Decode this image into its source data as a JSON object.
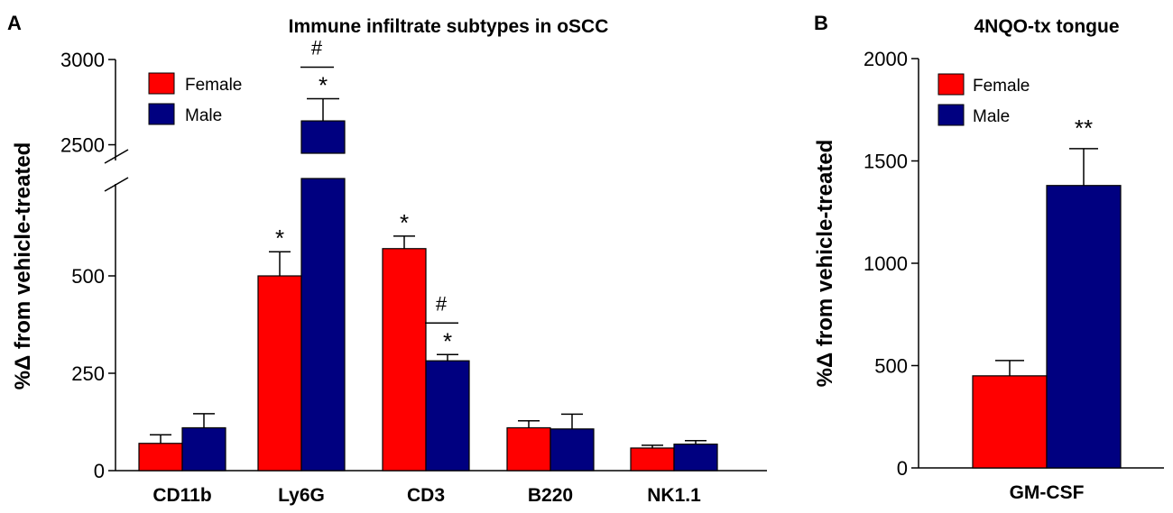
{
  "chart_data": [
    {
      "panel": "A",
      "type": "bar",
      "title": "Immune infiltrate subtypes in oSCC",
      "ylabel": "%Δ from vehicle-treated",
      "xlabel": "",
      "y_ticks_lower": [
        0,
        250,
        500
      ],
      "y_ticks_upper": [
        2500,
        3000
      ],
      "axis_break": {
        "lower_range": [
          0,
          750
        ],
        "upper_range": [
          2450,
          3000
        ]
      },
      "categories": [
        "CD11b",
        "Ly6G",
        "CD3",
        "B220",
        "NK1.1"
      ],
      "series": [
        {
          "name": "Female",
          "color": "#ff0000",
          "values": [
            70,
            500,
            570,
            110,
            58
          ],
          "errors": [
            22,
            62,
            32,
            18,
            7
          ]
        },
        {
          "name": "Male",
          "color": "#000080",
          "values": [
            110,
            2640,
            282,
            107,
            68
          ],
          "errors": [
            36,
            130,
            16,
            38,
            9
          ]
        }
      ],
      "annotations": {
        "star": "*",
        "hash": "#",
        "star_marks": [
          {
            "category": 1,
            "series": 0
          },
          {
            "category": 1,
            "series": 1
          },
          {
            "category": 2,
            "series": 0
          },
          {
            "category": 2,
            "series": 1
          }
        ],
        "hash_marks": [
          1,
          2
        ]
      }
    },
    {
      "panel": "B",
      "type": "bar",
      "title": "4NQO-tx tongue",
      "ylabel": "%Δ from vehicle-treated",
      "xlabel": "",
      "ylim": [
        0,
        2000
      ],
      "y_ticks": [
        0,
        500,
        1000,
        1500,
        2000
      ],
      "categories": [
        "GM-CSF"
      ],
      "series": [
        {
          "name": "Female",
          "color": "#ff0000",
          "values": [
            450
          ],
          "errors": [
            75
          ]
        },
        {
          "name": "Male",
          "color": "#000080",
          "values": [
            1380
          ],
          "errors": [
            180
          ]
        }
      ],
      "annotations": {
        "male_mark": "**"
      }
    }
  ]
}
